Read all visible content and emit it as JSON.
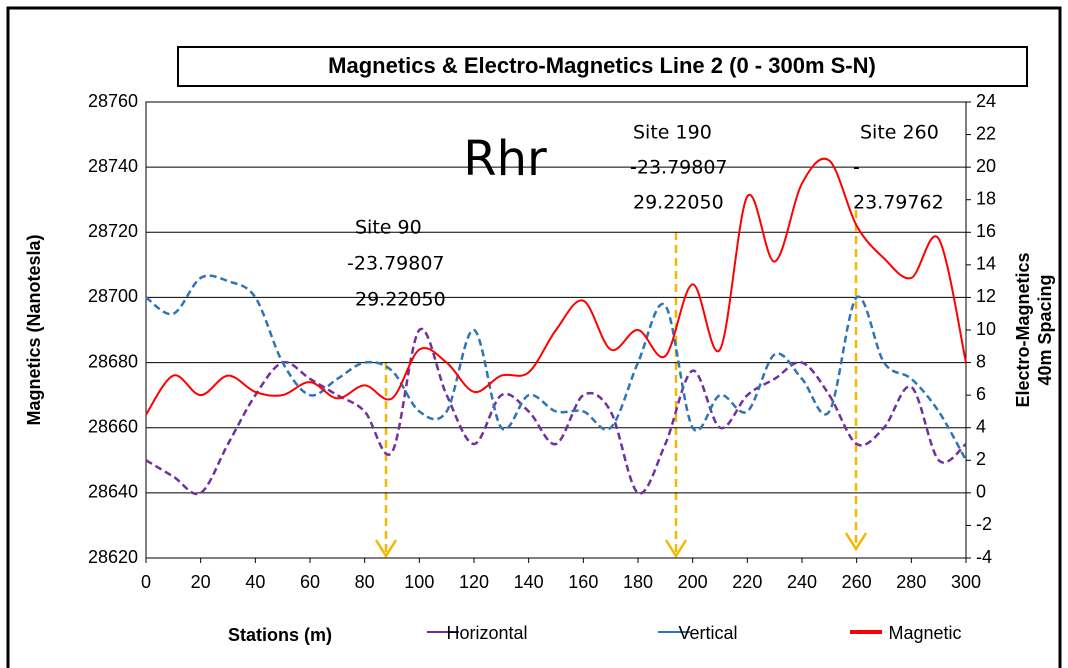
{
  "chart_data": {
    "type": "line",
    "title": "Magnetics & Electro-Magnetics Line 2  (0 - 300m S-N)",
    "x_label": "Stations (m)",
    "y_label": "Magnetics (Nanotesla)",
    "y2_label": [
      "Electro-Magnetics",
      "40m Spacing"
    ],
    "x": [
      0,
      10,
      20,
      30,
      40,
      50,
      60,
      70,
      80,
      90,
      100,
      110,
      120,
      130,
      140,
      150,
      160,
      170,
      180,
      190,
      200,
      210,
      220,
      230,
      240,
      250,
      260,
      270,
      280,
      290,
      300
    ],
    "xlim": [
      0,
      300
    ],
    "xticks": [
      0,
      20,
      40,
      60,
      80,
      100,
      120,
      140,
      160,
      180,
      200,
      220,
      240,
      260,
      280,
      300
    ],
    "ylim": [
      28620,
      28760
    ],
    "yticks": [
      28620,
      28640,
      28660,
      28680,
      28700,
      28720,
      28740,
      28760
    ],
    "y2lim": [
      -4,
      24
    ],
    "y2ticks": [
      -4,
      -2,
      0,
      2,
      4,
      6,
      8,
      10,
      12,
      14,
      16,
      18,
      20,
      22,
      24
    ],
    "grid": true,
    "series": [
      {
        "name": "Horizontal",
        "color": "#7030a0",
        "axis": "y2",
        "dash": true,
        "values": [
          2,
          1,
          0,
          3,
          6,
          8,
          7,
          6,
          5,
          2.5,
          10,
          6,
          3,
          6,
          5,
          3,
          6,
          5,
          0,
          3,
          7.5,
          4,
          6,
          7,
          8,
          6,
          3,
          4,
          6.5,
          2,
          3
        ]
      },
      {
        "name": "Vertical",
        "color": "#2e75b6",
        "axis": "y2",
        "dash": true,
        "values": [
          12,
          11,
          13.2,
          13,
          12,
          8,
          6,
          7,
          8,
          7.5,
          5,
          5,
          10,
          4,
          6,
          5,
          5,
          4,
          8,
          11.5,
          4,
          6,
          5,
          8.5,
          7,
          5,
          12,
          8,
          7,
          5,
          2
        ]
      },
      {
        "name": "Magnetic",
        "color": "#ff0000",
        "dash": false,
        "values": [
          28664,
          28676,
          28670,
          28676,
          28671,
          28670,
          28674,
          28669,
          28673,
          28669,
          28684,
          28680,
          28671,
          28676,
          28677,
          28690,
          28699,
          28684,
          28690,
          28682,
          28704,
          28684,
          28731,
          28711,
          28735,
          28742,
          28722,
          28712,
          28706,
          28718,
          28680
        ]
      }
    ],
    "annotations": [
      {
        "lines": [
          "Rhr"
        ]
      },
      {
        "lines": [
          "Site 90",
          "-23.79807",
          "29.22050"
        ]
      },
      {
        "lines": [
          "Site 190",
          "-23.79807",
          "29.22050"
        ]
      },
      {
        "lines": [
          "Site 260",
          "-",
          "23.79762"
        ]
      }
    ]
  }
}
